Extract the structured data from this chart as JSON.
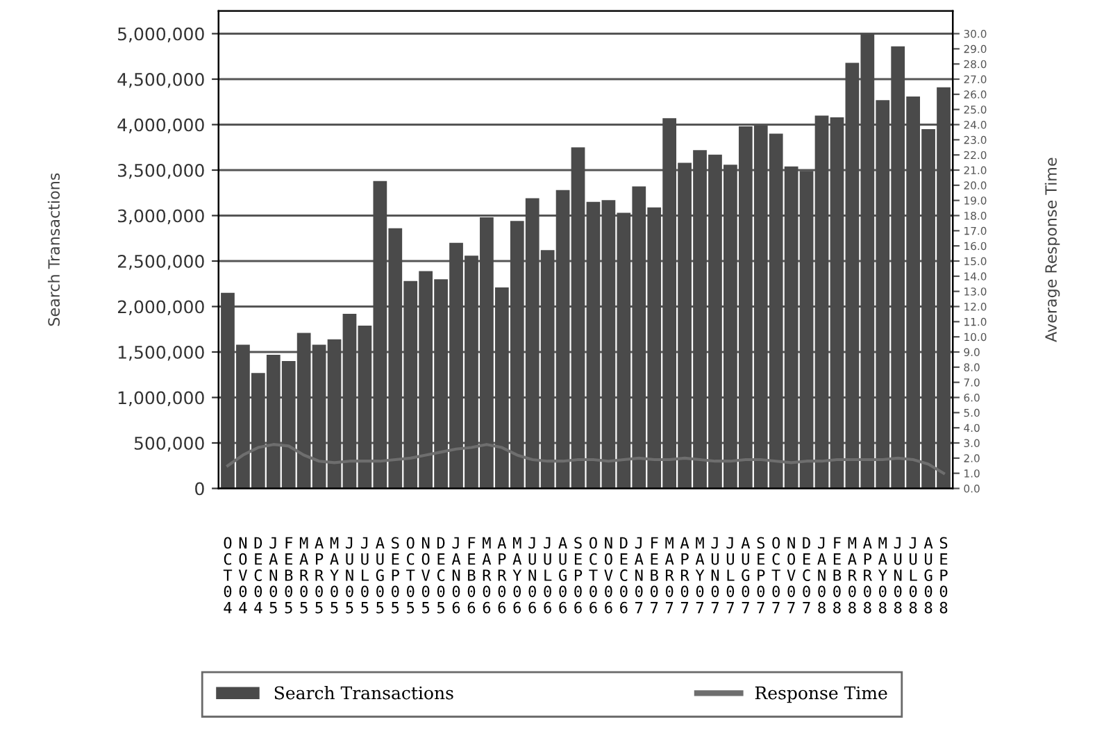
{
  "chart_data": {
    "type": "bar",
    "ylabel": "Search Transactions",
    "y2label": "Average Response Time",
    "categories": [
      "OCT04",
      "NOV04",
      "DEC04",
      "JAN05",
      "FEB05",
      "MAR05",
      "APR05",
      "MAY05",
      "JUN05",
      "JUL05",
      "AUG05",
      "SEP05",
      "OCT05",
      "NOV05",
      "DEC05",
      "JAN06",
      "FEB06",
      "MAR06",
      "APR06",
      "MAY06",
      "JUN06",
      "JUL06",
      "AUG06",
      "SEP06",
      "OCT06",
      "NOV06",
      "DEC06",
      "JAN07",
      "FEB07",
      "MAR07",
      "APR07",
      "MAY07",
      "JUN07",
      "JUL07",
      "AUG07",
      "SEP07",
      "OCT07",
      "NOV07",
      "DEC07",
      "JAN08",
      "FEB08",
      "MAR08",
      "APR08",
      "MAY08",
      "JUN08",
      "JUL08",
      "AUG08",
      "SEP08"
    ],
    "series": [
      {
        "name": "Search Transactions",
        "color": "#4a4a4a",
        "values": [
          2150000,
          1580000,
          1270000,
          1470000,
          1400000,
          1710000,
          1580000,
          1640000,
          1920000,
          1790000,
          3380000,
          2860000,
          2280000,
          2390000,
          2300000,
          2700000,
          2560000,
          2980000,
          2210000,
          2940000,
          3190000,
          2620000,
          3280000,
          3750000,
          3150000,
          3170000,
          3030000,
          3320000,
          3090000,
          4070000,
          3580000,
          3720000,
          3670000,
          3560000,
          3980000,
          3990000,
          3900000,
          3540000,
          3490000,
          4100000,
          4080000,
          4680000,
          5000000,
          4270000,
          4860000,
          4310000,
          3950000,
          4410000
        ]
      },
      {
        "name": "Response Time",
        "type": "line",
        "axis": "y2",
        "color": "#6e6e6e",
        "values": [
          1.5,
          2.2,
          2.7,
          2.9,
          2.8,
          2.2,
          1.8,
          1.7,
          1.8,
          1.8,
          1.8,
          1.9,
          2.0,
          2.2,
          2.4,
          2.6,
          2.7,
          2.9,
          2.7,
          2.2,
          1.9,
          1.8,
          1.8,
          1.9,
          1.9,
          1.8,
          1.9,
          2.0,
          1.9,
          1.9,
          2.0,
          1.9,
          1.8,
          1.8,
          1.9,
          1.9,
          1.8,
          1.7,
          1.8,
          1.8,
          1.9,
          1.9,
          1.9,
          1.9,
          2.0,
          1.9,
          1.6,
          1.0
        ]
      }
    ],
    "ylim": [
      0,
      5250000
    ],
    "yticks": [
      {
        "value": 0,
        "label": "0"
      },
      {
        "value": 500000,
        "label": "500,000"
      },
      {
        "value": 1000000,
        "label": "1,000,000"
      },
      {
        "value": 1500000,
        "label": "1,500,000"
      },
      {
        "value": 2000000,
        "label": "2,000,000"
      },
      {
        "value": 2500000,
        "label": "2,500,000"
      },
      {
        "value": 3000000,
        "label": "3,000,000"
      },
      {
        "value": 3500000,
        "label": "3,500,000"
      },
      {
        "value": 4000000,
        "label": "4,000,000"
      },
      {
        "value": 4500000,
        "label": "4,500,000"
      },
      {
        "value": 5000000,
        "label": "5,000,000"
      }
    ],
    "y2lim": [
      0,
      31.5
    ],
    "y2ticks": [
      {
        "value": 0,
        "label": "0.0"
      },
      {
        "value": 1,
        "label": "1.0"
      },
      {
        "value": 2,
        "label": "2.0"
      },
      {
        "value": 3,
        "label": "3.0"
      },
      {
        "value": 4,
        "label": "4.0"
      },
      {
        "value": 5,
        "label": "5.0"
      },
      {
        "value": 6,
        "label": "6.0"
      },
      {
        "value": 7,
        "label": "7.0"
      },
      {
        "value": 8,
        "label": "8.0"
      },
      {
        "value": 9,
        "label": "9.0"
      },
      {
        "value": 10,
        "label": "10.0"
      },
      {
        "value": 11,
        "label": "11.0"
      },
      {
        "value": 12,
        "label": "12.0"
      },
      {
        "value": 13,
        "label": "13.0"
      },
      {
        "value": 14,
        "label": "14.0"
      },
      {
        "value": 15,
        "label": "15.0"
      },
      {
        "value": 16,
        "label": "16.0"
      },
      {
        "value": 17,
        "label": "17.0"
      },
      {
        "value": 18,
        "label": "18.0"
      },
      {
        "value": 19,
        "label": "19.0"
      },
      {
        "value": 20,
        "label": "20.0"
      },
      {
        "value": 21,
        "label": "21.0"
      },
      {
        "value": 22,
        "label": "22.0"
      },
      {
        "value": 23,
        "label": "23.0"
      },
      {
        "value": 24,
        "label": "24.0"
      },
      {
        "value": 25,
        "label": "25.0"
      },
      {
        "value": 26,
        "label": "26.0"
      },
      {
        "value": 27,
        "label": "27.0"
      },
      {
        "value": 28,
        "label": "28.0"
      },
      {
        "value": 29,
        "label": "29.0"
      },
      {
        "value": 30,
        "label": "30.0"
      }
    ],
    "grid": "y",
    "legend": "bottom",
    "marker": "none",
    "line_style": "solid"
  }
}
